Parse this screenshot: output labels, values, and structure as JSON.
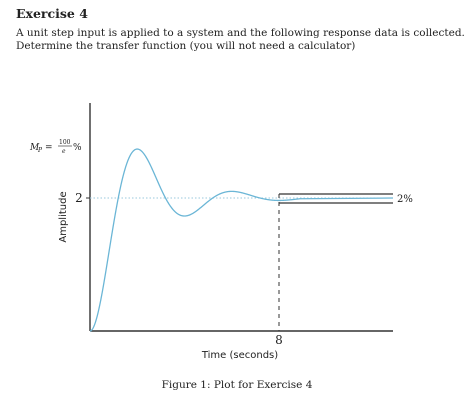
{
  "exercise": {
    "title": "Exercise 4",
    "description": "A unit step input is applied to a system and the following response data is collected. Determine the transfer function (you will not need a calculator)"
  },
  "chart_data": {
    "type": "line",
    "title": "",
    "xlabel": "Time (seconds)",
    "ylabel": "Amplitude",
    "steady_state_label": "2",
    "settling_time_label": "8",
    "peak_label": "M_P = 100/e %",
    "tolerance_label": "2%",
    "final_value": 2,
    "settling_time": 8,
    "peak_overshoot_fraction": 0.368,
    "grid": false,
    "legend": "none",
    "series": [
      {
        "values_description_free": true,
        "color": "#6bb6d6"
      }
    ]
  },
  "caption": "Figure 1: Plot for Exercise 4",
  "colors": {
    "response": "#6bb6d6",
    "axes": "#333333"
  }
}
